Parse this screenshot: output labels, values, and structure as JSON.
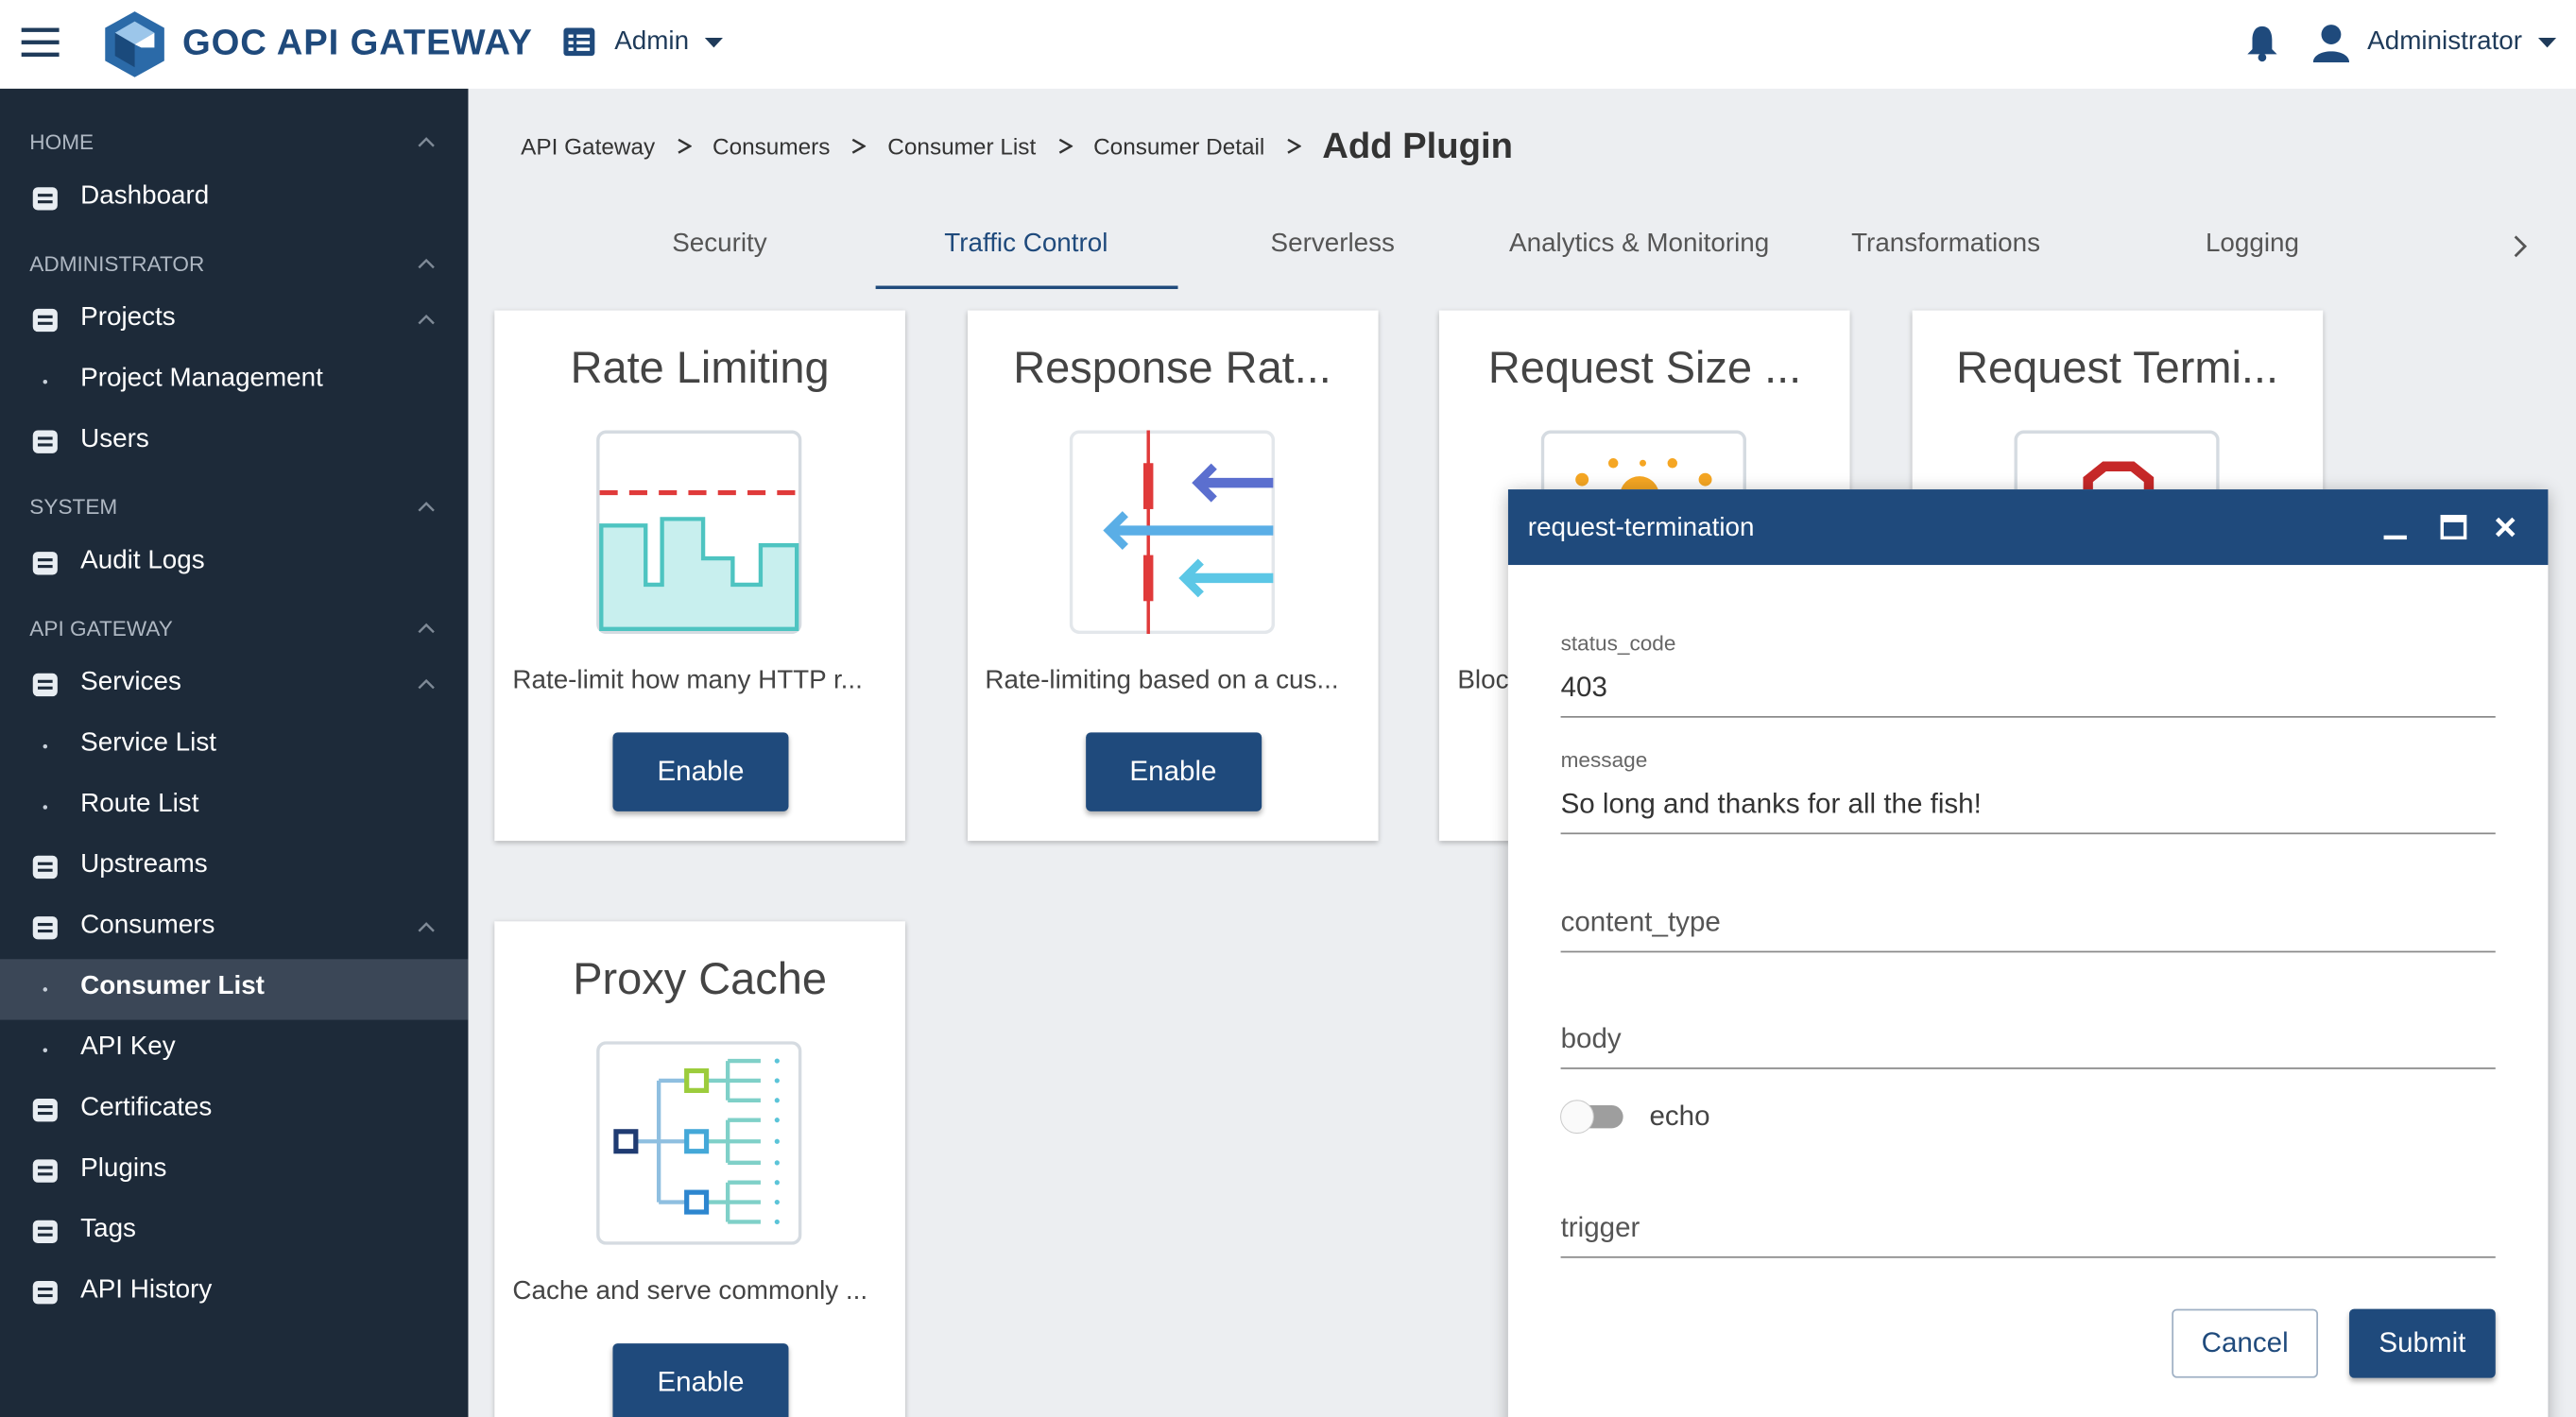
{
  "header": {
    "brand": "GOC API GATEWAY",
    "menu": "Admin",
    "user": "Administrator"
  },
  "sidebar": {
    "sections": [
      {
        "title": "HOME",
        "items": [
          {
            "label": "Dashboard"
          }
        ]
      },
      {
        "title": "ADMINISTRATOR",
        "items": [
          {
            "label": "Projects",
            "children": [
              {
                "label": "Project Management"
              }
            ]
          },
          {
            "label": "Users"
          }
        ]
      },
      {
        "title": "SYSTEM",
        "items": [
          {
            "label": "Audit Logs"
          }
        ]
      },
      {
        "title": "API GATEWAY",
        "items": [
          {
            "label": "Services",
            "children": [
              {
                "label": "Service List"
              },
              {
                "label": "Route List"
              }
            ]
          },
          {
            "label": "Upstreams"
          },
          {
            "label": "Consumers",
            "children": [
              {
                "label": "Consumer List",
                "active": true
              },
              {
                "label": "API Key"
              }
            ]
          },
          {
            "label": "Certificates"
          },
          {
            "label": "Plugins"
          },
          {
            "label": "Tags"
          },
          {
            "label": "API History"
          }
        ]
      }
    ]
  },
  "breadcrumb": [
    "API Gateway",
    "Consumers",
    "Consumer List",
    "Consumer Detail",
    "Add Plugin"
  ],
  "tabs": [
    {
      "label": "Security"
    },
    {
      "label": "Traffic Control",
      "active": true
    },
    {
      "label": "Serverless"
    },
    {
      "label": "Analytics & Monitoring"
    },
    {
      "label": "Transformations"
    },
    {
      "label": "Logging"
    }
  ],
  "cards": [
    {
      "title": "Rate Limiting",
      "description": "Rate-limit how many HTTP r...",
      "button": "Enable"
    },
    {
      "title": "Response Rat...",
      "description": "Rate-limiting based on a cus...",
      "button": "Enable"
    },
    {
      "title": "Request Size ...",
      "description": "Bloc"
    },
    {
      "title": "Request Termi..."
    },
    {
      "title": "Proxy Cache",
      "description": "Cache and serve commonly ...",
      "button": "Enable"
    }
  ],
  "dialog": {
    "title": "request-termination",
    "fields": [
      {
        "label": "status_code",
        "value": "403"
      },
      {
        "label": "message",
        "value": "So long and thanks for all the fish!"
      },
      {
        "label": "content_type"
      },
      {
        "label": "body"
      },
      {
        "label": "echo",
        "switch": false
      },
      {
        "label": "trigger"
      }
    ],
    "cancel": "Cancel",
    "submit": "Submit"
  }
}
